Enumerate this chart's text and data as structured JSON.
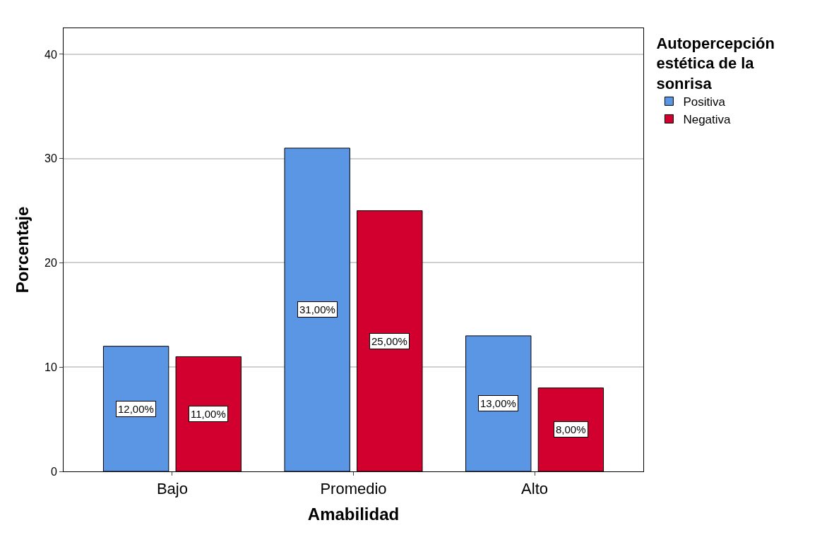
{
  "chart_data": {
    "type": "bar",
    "xlabel": "Amabilidad",
    "ylabel": "Porcentaje",
    "legend_title": "Autopercepción estética de la sonrisa",
    "categories": [
      "Bajo",
      "Promedio",
      "Alto"
    ],
    "series": [
      {
        "name": "Positiva",
        "color": "#5b96e4",
        "values": [
          12,
          31,
          13
        ],
        "value_labels": [
          "12,00%",
          "31,00%",
          "13,00%"
        ]
      },
      {
        "name": "Negativa",
        "color": "#d2002e",
        "values": [
          11,
          25,
          8
        ],
        "value_labels": [
          "11,00%",
          "25,00%",
          "8,00%"
        ]
      }
    ],
    "ylim": [
      0,
      42.5
    ],
    "yticks": [
      0,
      10,
      20,
      30,
      40
    ],
    "grid": "y",
    "legend": "top right"
  }
}
